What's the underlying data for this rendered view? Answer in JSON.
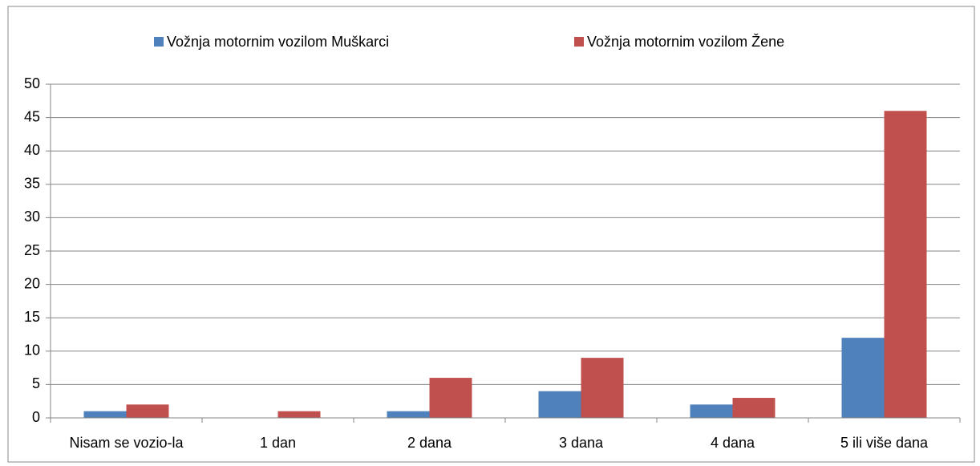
{
  "chart_data": {
    "type": "bar",
    "categories": [
      "Nisam se vozio-la",
      "1 dan",
      "2 dana",
      "3 dana",
      "4 dana",
      "5 ili više dana"
    ],
    "series": [
      {
        "name": "Vožnja motornim vozilom Muškarci",
        "color": "#4f81bd",
        "values": [
          1,
          0,
          1,
          4,
          2,
          12
        ]
      },
      {
        "name": "Vožnja motornim vozilom Žene",
        "color": "#c0504d",
        "values": [
          2,
          1,
          6,
          9,
          3,
          46
        ]
      }
    ],
    "ylim": [
      0,
      50
    ],
    "yticks": [
      0,
      5,
      10,
      15,
      20,
      25,
      30,
      35,
      40,
      45,
      50
    ],
    "grid": true,
    "legend": "top"
  }
}
